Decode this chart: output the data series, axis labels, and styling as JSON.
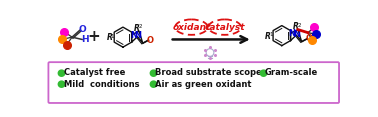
{
  "bg_color": "#ffffff",
  "box_color": "#cc66cc",
  "box_bg": "#ffffff",
  "bullet_color": "#33bb33",
  "bullet_items_col1": [
    "Catalyst free",
    "Mild  conditions"
  ],
  "bullet_items_col2": [
    "Broad substrate scope",
    "Air as green oxidant"
  ],
  "bullet_items_col3": [
    "Gram-scale"
  ],
  "arrow_color": "#111111",
  "oxidant_color": "#dd1111",
  "catalyst_color": "#dd1111",
  "aldehyde": {
    "O_color": "#2222dd",
    "H_color": "#2222dd",
    "dot_pink": "#ff00cc",
    "dot_orange": "#ff8800",
    "dot_red": "#cc2200"
  },
  "product": {
    "bond_red": "#cc0000",
    "dot_pink": "#ff00cc",
    "dot_blue": "#0000cc",
    "dot_orange": "#ff8800"
  },
  "R_color": "#111111",
  "N_color": "#0000cc",
  "O_color": "#cc2200",
  "C_color": "#111111",
  "light_bulb_color": "#9999bb"
}
